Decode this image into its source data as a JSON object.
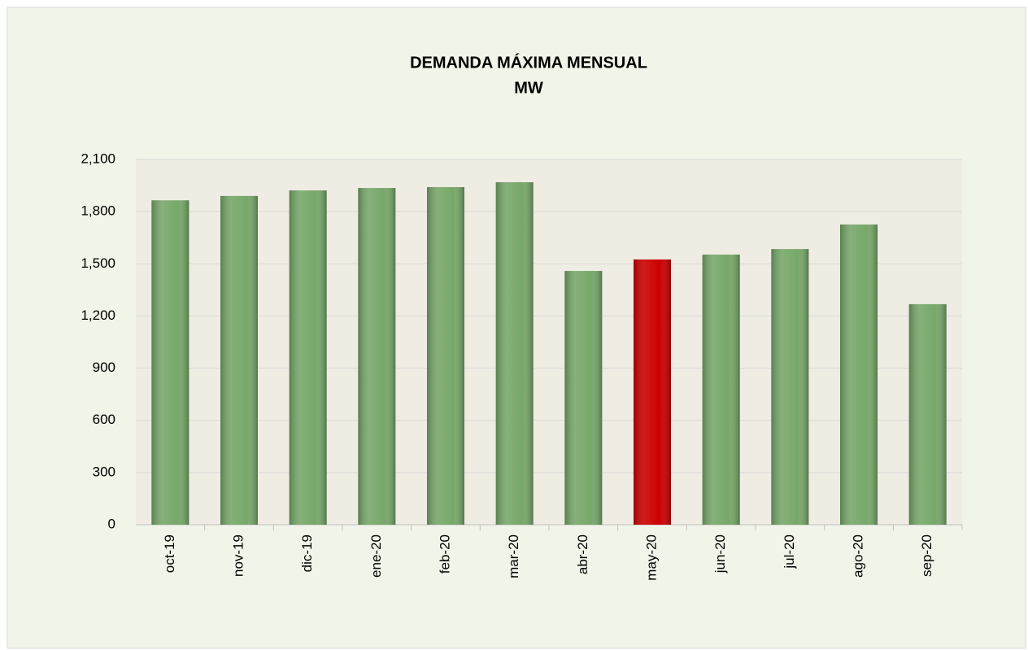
{
  "chart_data": {
    "type": "bar",
    "title": "DEMANDA  MÁXIMA  MENSUAL",
    "subtitle": "MW",
    "categories": [
      "oct-19",
      "nov-19",
      "dic-19",
      "ene-20",
      "feb-20",
      "mar-20",
      "abr-20",
      "may-20",
      "jun-20",
      "jul-20",
      "ago-20",
      "sep-20"
    ],
    "values": [
      1865,
      1890,
      1922,
      1936,
      1941,
      1969,
      1459,
      1525,
      1553,
      1585,
      1726,
      1268
    ],
    "colors": [
      "#77a86a",
      "#77a86a",
      "#77a86a",
      "#77a86a",
      "#77a86a",
      "#77a86a",
      "#77a86a",
      "#cc0000",
      "#77a86a",
      "#77a86a",
      "#77a86a",
      "#77a86a"
    ],
    "ylim": [
      0,
      2100
    ],
    "yticks": [
      0,
      300,
      600,
      900,
      {
        "value": 1200,
        "label": "1,200"
      },
      {
        "value": 1500,
        "label": "1,500"
      },
      {
        "value": 1800,
        "label": "1,800"
      },
      {
        "value": 2100,
        "label": "2,100"
      }
    ],
    "grid": true
  }
}
